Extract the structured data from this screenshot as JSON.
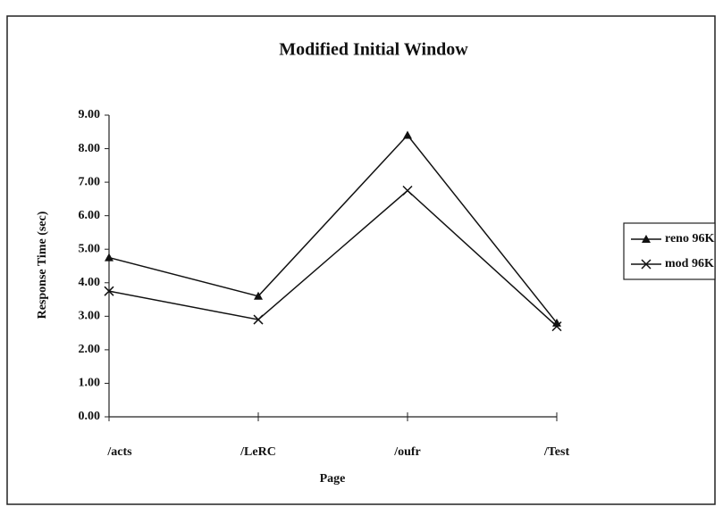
{
  "chart_data": {
    "type": "line",
    "title": "Modified Initial Window",
    "x_label": "Page",
    "y_label": "Response Time (sec)",
    "categories": [
      "/acts",
      "/LeRC",
      "/oufr",
      "/Test"
    ],
    "series": [
      {
        "name": "reno 96K",
        "color": "#111111",
        "marker": "triangle",
        "values": [
          4.75,
          3.6,
          8.4,
          2.8
        ]
      },
      {
        "name": "mod 96K",
        "color": "#111111",
        "marker": "x",
        "values": [
          3.75,
          2.9,
          6.75,
          2.7
        ]
      }
    ],
    "ylim": [
      0,
      9
    ],
    "yticks": [
      {
        "value": 0,
        "label": "0.00"
      },
      {
        "value": 1,
        "label": "1.00"
      },
      {
        "value": 2,
        "label": "2.00"
      },
      {
        "value": 3,
        "label": "3.00"
      },
      {
        "value": 4,
        "label": "4.00"
      },
      {
        "value": 5,
        "label": "5.00"
      },
      {
        "value": 6,
        "label": "6.00"
      },
      {
        "value": 7,
        "label": "7.00"
      },
      {
        "value": 8,
        "label": "8.00"
      },
      {
        "value": 9,
        "label": "9.00"
      }
    ],
    "grid": false,
    "legend": "right"
  }
}
